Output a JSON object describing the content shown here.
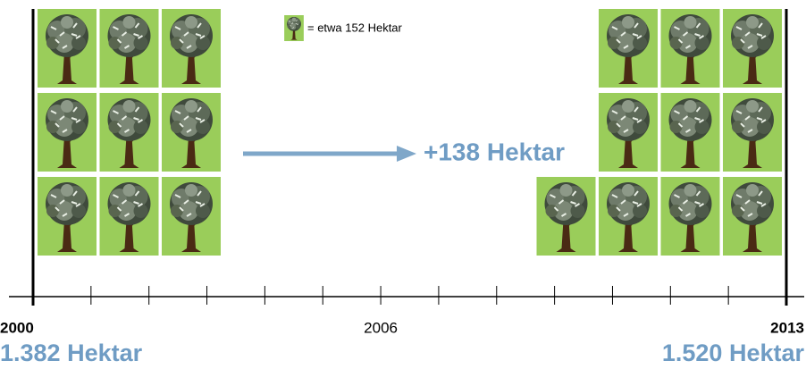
{
  "chart_data": {
    "type": "pictogram",
    "legend": "= etwa 152 Hektar",
    "annotation": "+138 Hektar",
    "x": [
      2000,
      2013
    ],
    "values": [
      1382,
      1520
    ],
    "value_labels": [
      "1.382 Hektar",
      "1.520 Hektar"
    ],
    "icon_counts": [
      9,
      10
    ],
    "xlim": [
      2000,
      2013
    ],
    "xticks": [
      2000,
      2006,
      2013
    ],
    "minor_xticks": [
      2001,
      2002,
      2003,
      2004,
      2005,
      2007,
      2008,
      2009,
      2010,
      2011,
      2012
    ],
    "icon_color": "#9acd5a",
    "value_color": "#6f9cc4"
  }
}
